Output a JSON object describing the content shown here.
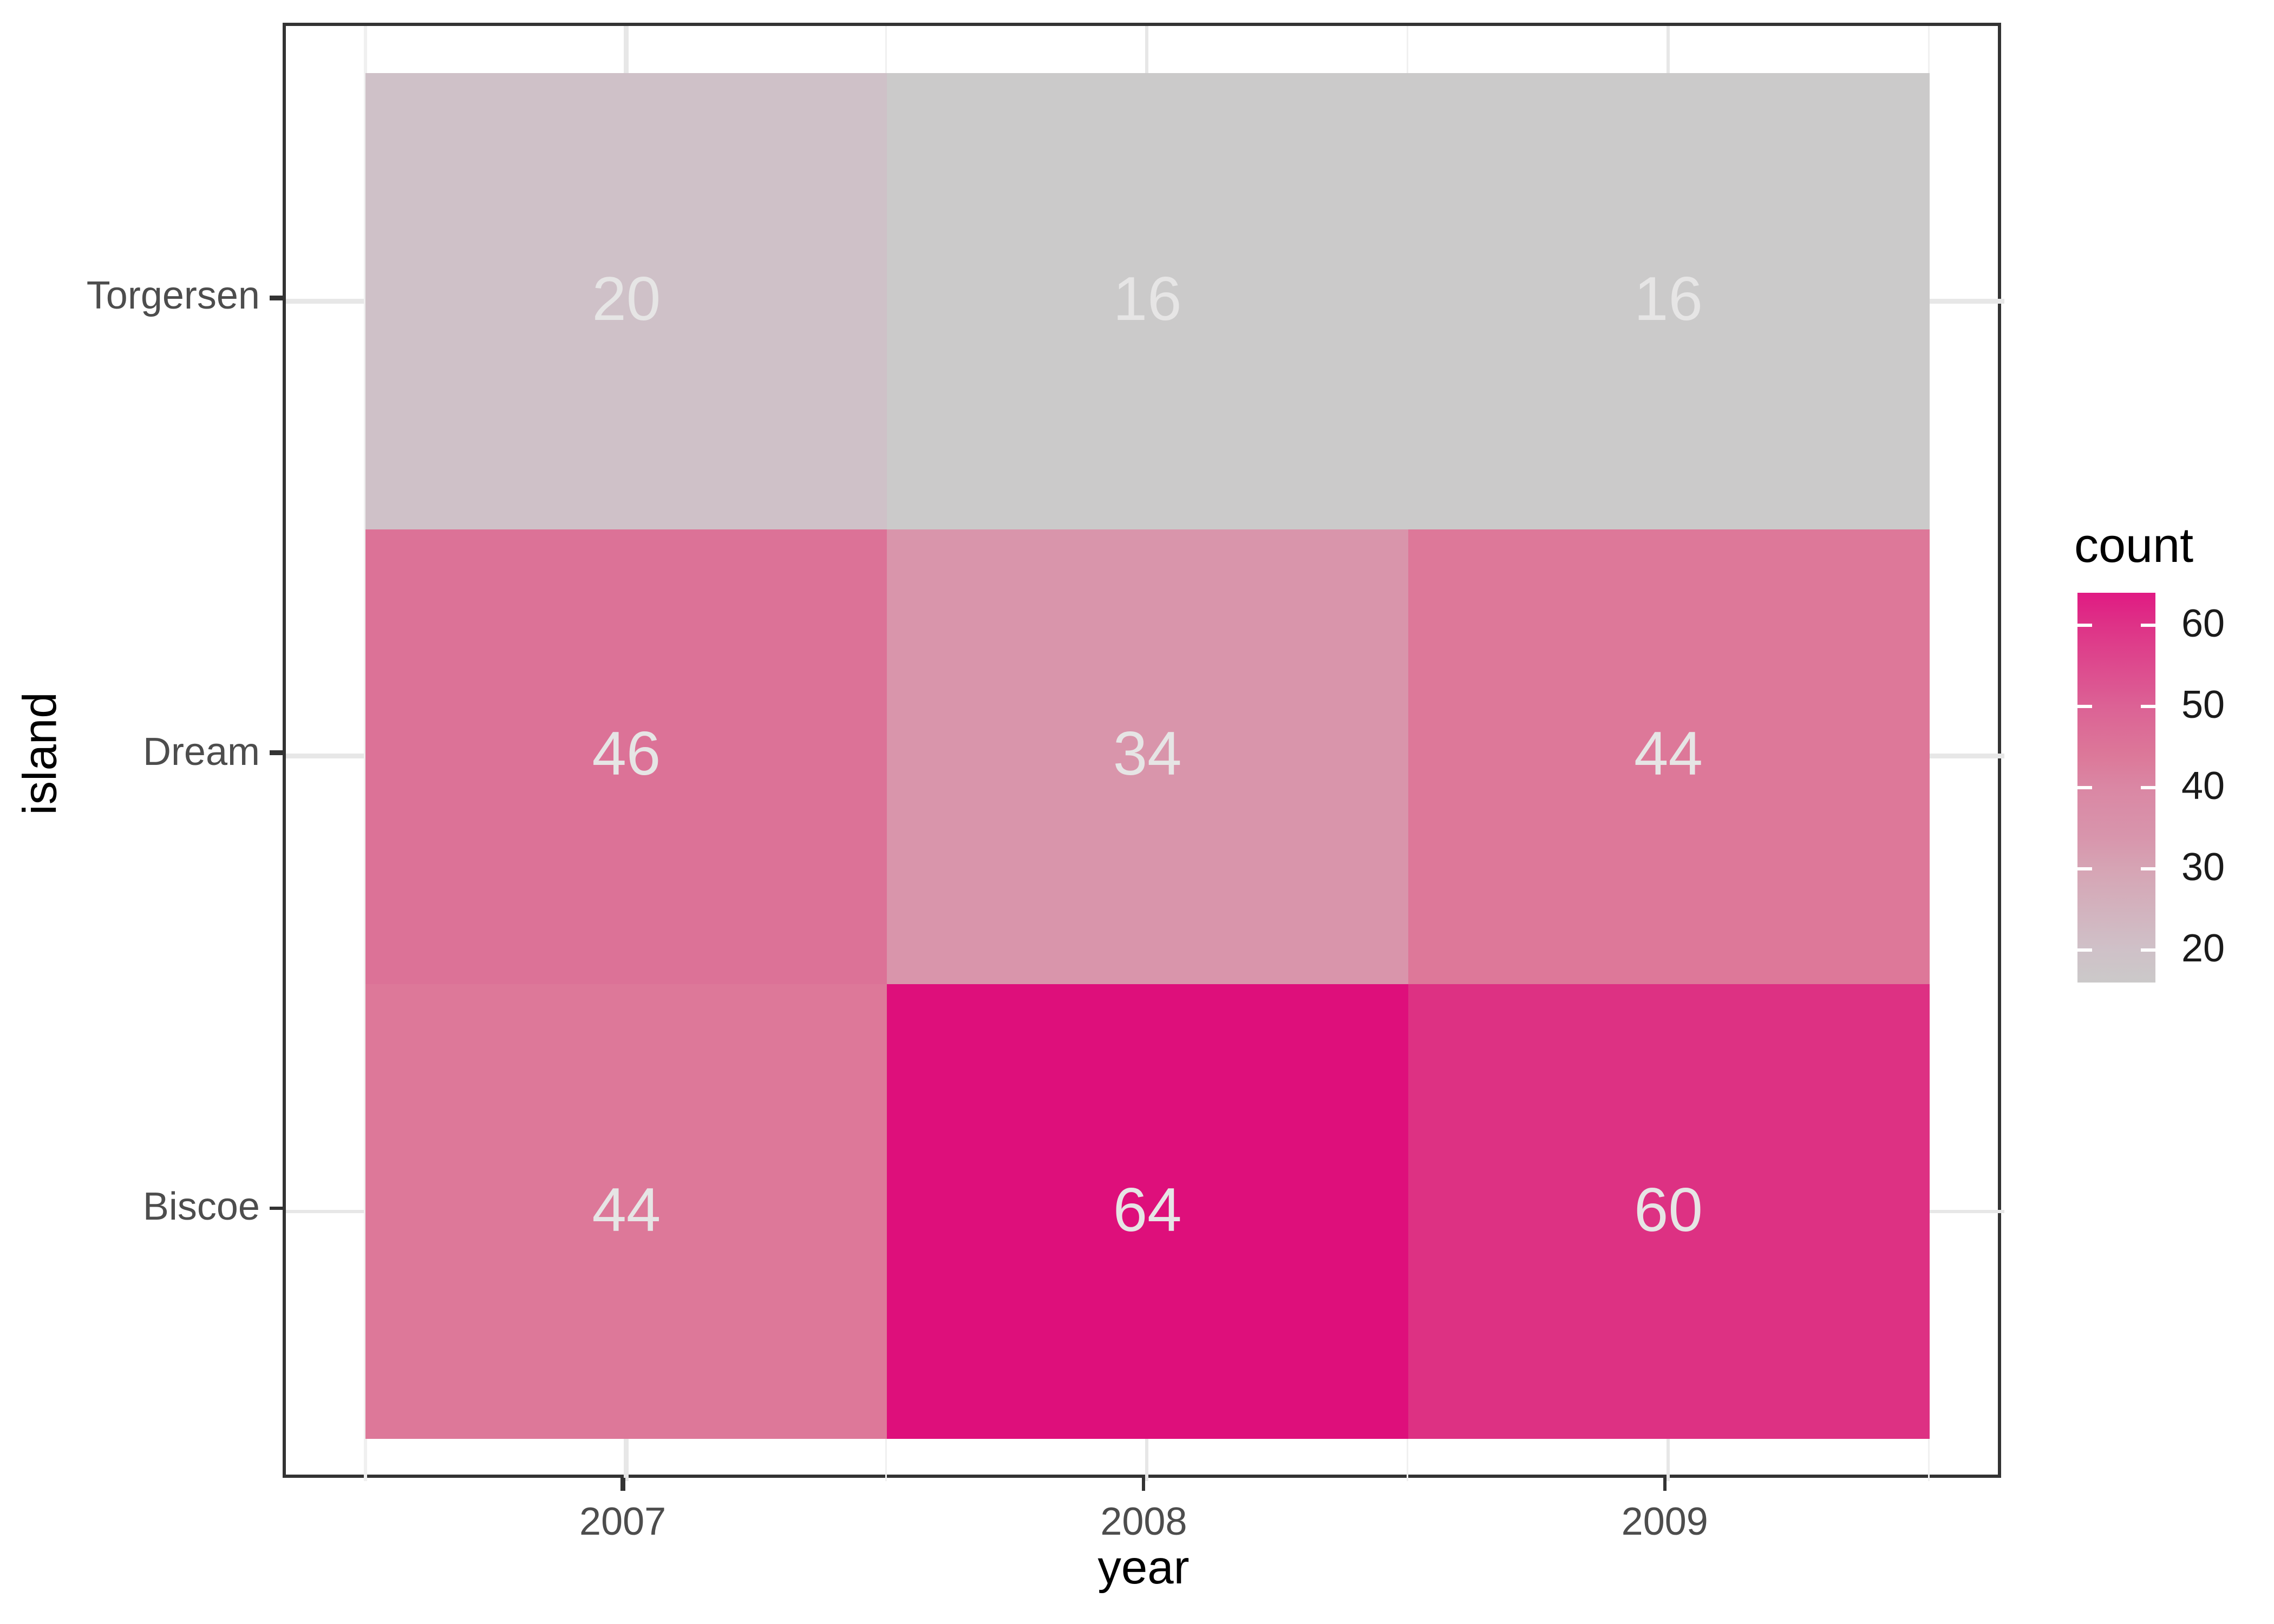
{
  "chart_data": {
    "type": "heatmap",
    "xlabel": "year",
    "ylabel": "island",
    "x_categories": [
      "2007",
      "2008",
      "2009"
    ],
    "y_categories": [
      "Torgersen",
      "Dream",
      "Biscoe"
    ],
    "values": [
      [
        20,
        16,
        16
      ],
      [
        46,
        34,
        44
      ],
      [
        44,
        64,
        60
      ]
    ],
    "cell_colors": [
      [
        "#cfc1c8",
        "#cbcaca",
        "#cbcaca"
      ],
      [
        "#dc7297",
        "#d995ab",
        "#dd7899"
      ],
      [
        "#dd7899",
        "#de0f7b",
        "#dd3183"
      ]
    ],
    "value_range": [
      16,
      64
    ],
    "grid": "on",
    "legend": {
      "title": "count",
      "position": "right",
      "tick_values": [
        60,
        50,
        40,
        30,
        20
      ],
      "tick_labels": [
        "60",
        "50",
        "40",
        "30",
        "20"
      ],
      "gradient_stops": [
        {
          "value": 16,
          "color": "#cbc9c9"
        },
        {
          "value": 20,
          "color": "#cfc1c8"
        },
        {
          "value": 30,
          "color": "#d6a4b4"
        },
        {
          "value": 34,
          "color": "#d895ac"
        },
        {
          "value": 40,
          "color": "#da87a4"
        },
        {
          "value": 44,
          "color": "#dc7899"
        },
        {
          "value": 50,
          "color": "#dc6295"
        },
        {
          "value": 60,
          "color": "#de3287"
        },
        {
          "value": 64,
          "color": "#e01a83"
        }
      ]
    },
    "style": {
      "panel_border": "#333333",
      "grid_major": "#e7e7e7",
      "grid_minor": "#f0f0f0",
      "tick_color": "#333333",
      "axis_text_color": "#4d4d4d",
      "axis_title_color": "#000000",
      "cell_text_color": "#e6e5e5",
      "legend_text_color": "#1a1a1a"
    }
  }
}
